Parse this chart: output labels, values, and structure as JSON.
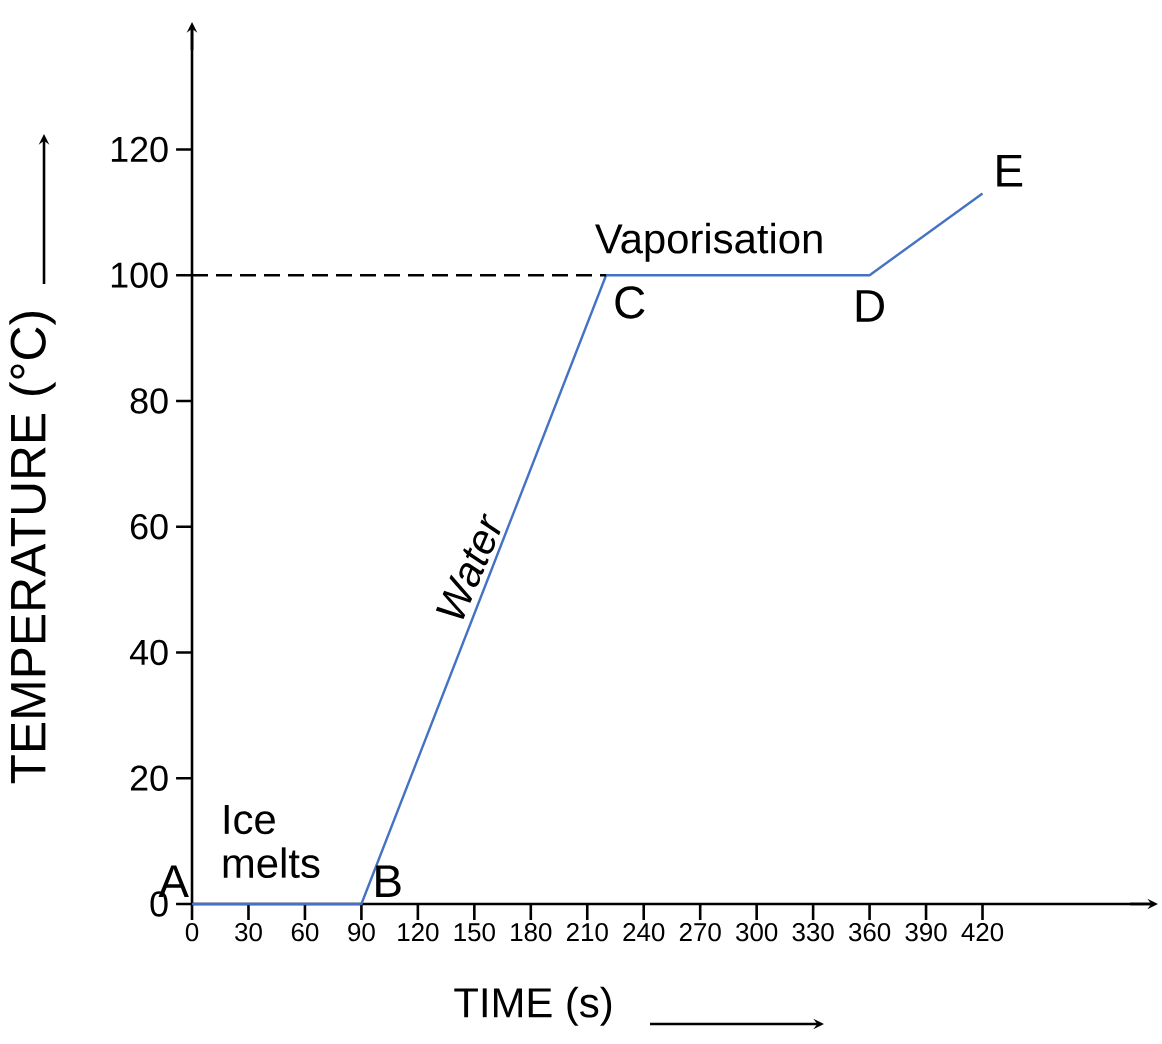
{
  "chart_data": {
    "type": "line",
    "xlabel": "TIME (s)",
    "ylabel": "TEMPERATURE (°C)",
    "xlim": [
      0,
      509
    ],
    "ylim": [
      0,
      139
    ],
    "xticks": [
      0,
      30,
      60,
      90,
      120,
      150,
      180,
      210,
      240,
      270,
      300,
      330,
      360,
      390,
      420
    ],
    "yticks": [
      0,
      20,
      40,
      60,
      80,
      100,
      120
    ],
    "series": [
      {
        "color": "#4472c4",
        "x": [
          0,
          90,
          220,
          360,
          420
        ],
        "values": [
          0,
          0,
          100,
          100,
          113
        ]
      },
      {
        "color": "#000000",
        "line_style": "dashed",
        "x": [
          0,
          220
        ],
        "values": [
          100,
          100
        ]
      }
    ],
    "annotations": [
      {
        "text": "A",
        "x": 0,
        "y": 0
      },
      {
        "text": "B",
        "x": 90,
        "y": 0
      },
      {
        "text": "C",
        "x": 220,
        "y": 100
      },
      {
        "text": "D",
        "x": 360,
        "y": 100
      },
      {
        "text": "E",
        "x": 420,
        "y": 113
      },
      "Ice melts",
      "Water",
      "Vaporisation"
    ],
    "grid": false,
    "marker": "none",
    "line_style": "solid"
  }
}
